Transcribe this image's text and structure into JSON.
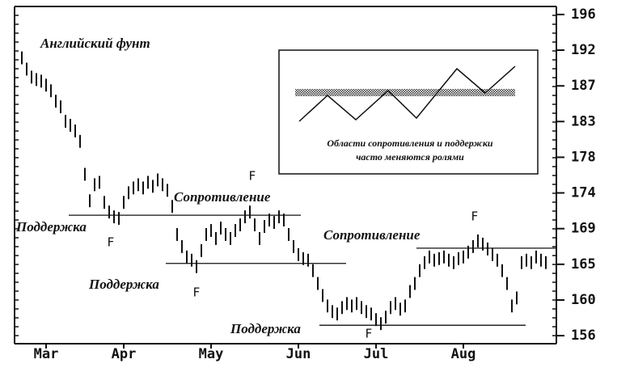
{
  "chart_data": {
    "type": "hilo",
    "title": "Английский фунт",
    "color": "#111111",
    "categories": [
      null,
      null,
      null,
      null,
      null,
      "Mar",
      null,
      null,
      null,
      null,
      null,
      null,
      null,
      null,
      null,
      null,
      null,
      null,
      null,
      null,
      null,
      "Apr",
      null,
      null,
      null,
      null,
      null,
      null,
      null,
      null,
      null,
      null,
      null,
      null,
      null,
      null,
      null,
      null,
      null,
      "May",
      null,
      null,
      null,
      null,
      null,
      null,
      null,
      null,
      null,
      null,
      null,
      null,
      null,
      null,
      null,
      null,
      null,
      "Jun",
      null,
      null,
      null,
      null,
      null,
      null,
      null,
      null,
      null,
      null,
      null,
      null,
      null,
      null,
      null,
      "Jul",
      null,
      null,
      null,
      null,
      null,
      null,
      null,
      null,
      null,
      null,
      null,
      null,
      null,
      null,
      null,
      null,
      null,
      "Aug",
      null,
      null,
      null,
      null,
      null,
      null,
      null,
      null,
      null,
      null,
      null,
      null,
      null,
      null,
      null,
      null,
      null
    ],
    "high": [
      191.4,
      190.0,
      189.0,
      188.7,
      188.5,
      188.0,
      187.3,
      186.0,
      185.3,
      183.5,
      183.0,
      182.3,
      181.0,
      176.9,
      173.6,
      175.6,
      175.9,
      173.4,
      172.2,
      171.6,
      171.4,
      173.4,
      174.6,
      175.2,
      175.6,
      175.2,
      175.9,
      175.4,
      176.2,
      175.6,
      174.9,
      172.9,
      169.4,
      167.9,
      166.6,
      166.2,
      165.4,
      167.4,
      169.4,
      169.9,
      168.9,
      170.2,
      169.4,
      168.9,
      169.9,
      170.6,
      171.6,
      172.2,
      170.6,
      168.9,
      170.4,
      171.2,
      170.9,
      171.6,
      171.2,
      169.4,
      167.9,
      166.9,
      166.4,
      166.2,
      164.9,
      163.3,
      161.8,
      160.5,
      159.8,
      159.5,
      160.3,
      160.8,
      160.5,
      160.8,
      160.3,
      159.8,
      159.5,
      158.8,
      158.3,
      159.1,
      160.3,
      160.8,
      160.1,
      160.5,
      162.3,
      163.3,
      164.9,
      165.9,
      166.6,
      166.2,
      166.4,
      166.6,
      166.2,
      165.9,
      166.4,
      166.6,
      167.2,
      167.9,
      168.6,
      168.2,
      167.6,
      166.9,
      166.2,
      164.9,
      163.3,
      160.5,
      161.5,
      165.9,
      166.2,
      165.9,
      166.6,
      166.2,
      165.9
    ],
    "low": [
      189.8,
      188.4,
      187.4,
      187.1,
      186.9,
      186.4,
      185.7,
      184.4,
      183.7,
      181.9,
      181.4,
      180.7,
      179.4,
      175.3,
      172.0,
      174.0,
      174.3,
      171.8,
      170.6,
      170.0,
      169.8,
      171.8,
      173.0,
      173.6,
      174.0,
      173.6,
      174.3,
      173.8,
      174.6,
      174.0,
      173.3,
      171.3,
      167.8,
      166.3,
      165.0,
      164.6,
      163.8,
      165.8,
      167.8,
      168.3,
      167.3,
      168.6,
      167.8,
      167.3,
      168.3,
      169.0,
      170.0,
      170.6,
      169.0,
      167.3,
      168.8,
      169.6,
      169.3,
      170.0,
      169.6,
      167.8,
      166.3,
      165.3,
      164.8,
      164.6,
      163.3,
      161.7,
      160.2,
      158.9,
      158.2,
      157.9,
      158.7,
      159.2,
      158.9,
      159.2,
      158.7,
      158.2,
      157.9,
      157.2,
      156.7,
      157.5,
      158.7,
      159.2,
      158.5,
      158.9,
      160.7,
      161.7,
      163.3,
      164.3,
      165.0,
      164.6,
      164.8,
      165.0,
      164.6,
      164.3,
      164.8,
      165.0,
      165.6,
      166.3,
      167.0,
      166.6,
      166.0,
      165.3,
      164.6,
      163.3,
      161.7,
      158.9,
      159.9,
      164.3,
      164.6,
      164.3,
      165.0,
      164.6,
      164.3
    ],
    "ylim": [
      155,
      197
    ],
    "yticks": [
      156,
      {
        "value": 160.44,
        "label": "160"
      },
      {
        "value": 164.89,
        "label": "165"
      },
      {
        "value": 169.33,
        "label": "169"
      },
      {
        "value": 173.78,
        "label": "174"
      },
      {
        "value": 178.22,
        "label": "178"
      },
      {
        "value": 182.67,
        "label": "183"
      },
      {
        "value": 187.11,
        "label": "187"
      },
      {
        "value": 191.56,
        "label": "192"
      },
      196
    ],
    "levels": [
      {
        "value": 171.0,
        "label": "Поддержка"
      },
      {
        "value": 171.0,
        "label": "Сопротивление"
      },
      {
        "value": 165.0,
        "label": "Поддержка"
      },
      {
        "value": 157.3,
        "label": "Поддержка"
      },
      {
        "value": 166.9,
        "label": "Сопротивление"
      }
    ],
    "markers": [
      "F",
      "F",
      "F",
      "F",
      "F"
    ],
    "inset": {
      "caption": [
        "Области сопротивления и поддержки",
        "часто меняются ролями"
      ]
    }
  }
}
